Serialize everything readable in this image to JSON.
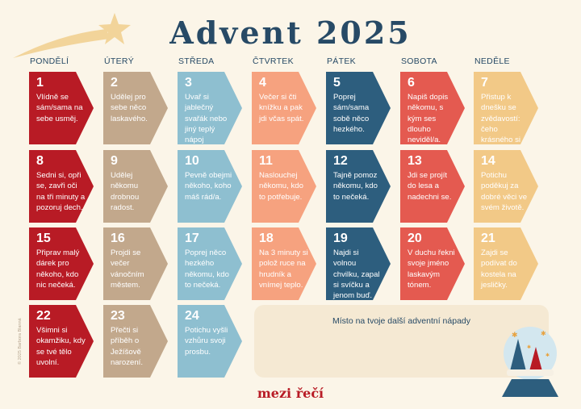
{
  "title": "Advent 2025",
  "weekdays": [
    "PONDĚLÍ",
    "ÚTERÝ",
    "STŘEDA",
    "ČTVRTEK",
    "PÁTEK",
    "SOBOTA",
    "NEDĚLE"
  ],
  "days": [
    {
      "num": "1",
      "text": "Vlídně se sám/sama na sebe usměj."
    },
    {
      "num": "2",
      "text": "Udělej pro sebe něco laskavého."
    },
    {
      "num": "3",
      "text": "Uvař si jablečný svařák nebo jiný teplý nápoj"
    },
    {
      "num": "4",
      "text": "Večer si čti knížku a pak jdi včas spát."
    },
    {
      "num": "5",
      "text": "Poprej sám/sama sobě něco hezkého."
    },
    {
      "num": "6",
      "text": "Napiš dopis někomu, s kým ses dlouho neviděl/a."
    },
    {
      "num": "7",
      "text": "Přistup k dnešku se zvědavostí: čeho krásného si všimneš?"
    },
    {
      "num": "8",
      "text": "Sedni si, opři se, zavři oči na tři minuty a pozoruj dech."
    },
    {
      "num": "9",
      "text": "Udělej někomu drobnou radost."
    },
    {
      "num": "10",
      "text": "Pevně obejmi někoho, koho máš rád/a."
    },
    {
      "num": "11",
      "text": "Naslouchej někomu, kdo to potřebuje."
    },
    {
      "num": "12",
      "text": "Tajně pomoz někomu, kdo to nečeká."
    },
    {
      "num": "13",
      "text": "Jdi se projít do lesa a nadechni se."
    },
    {
      "num": "14",
      "text": "Potichu poděkuj za dobré věci ve svém životě."
    },
    {
      "num": "15",
      "text": "Připrav malý dárek pro někoho, kdo nic nečeká."
    },
    {
      "num": "16",
      "text": "Projdi se večer vánočním městem."
    },
    {
      "num": "17",
      "text": "Poprej něco hezkého někomu, kdo to nečeká."
    },
    {
      "num": "18",
      "text": "Na 3 minuty si polož ruce na hrudník a vnímej teplo."
    },
    {
      "num": "19",
      "text": "Najdi si volnou chvilku, zapal si svíčku a jenom buď."
    },
    {
      "num": "20",
      "text": "V duchu řekni svoje jméno laskavým tónem."
    },
    {
      "num": "21",
      "text": "Zajdi se podívat do kostela na jesličky."
    },
    {
      "num": "22",
      "text": "Všimni si okamžiku, kdy se tvé tělo uvolní."
    },
    {
      "num": "23",
      "text": "Přečti si příběh o Ježíšově narození."
    },
    {
      "num": "24",
      "text": "Potichu vyšli vzhůru svoji prosbu."
    }
  ],
  "ideas_label": "Místo na tvoje další adventní nápady",
  "brand": "mezi řečí",
  "credit": "© 2025 Barbora Blanná",
  "colors": {
    "dark_red": "#b81b25",
    "tan": "#c2a88c",
    "light_blue": "#8ebfd0",
    "peach": "#f6a27f",
    "navy": "#2d5e7e",
    "coral": "#e45a50",
    "gold": "#f2c987",
    "title": "#274a66",
    "background": "#fbf5e8"
  },
  "icons": {
    "header": "shooting-star-icon",
    "corner": "snow-globe-icon"
  }
}
